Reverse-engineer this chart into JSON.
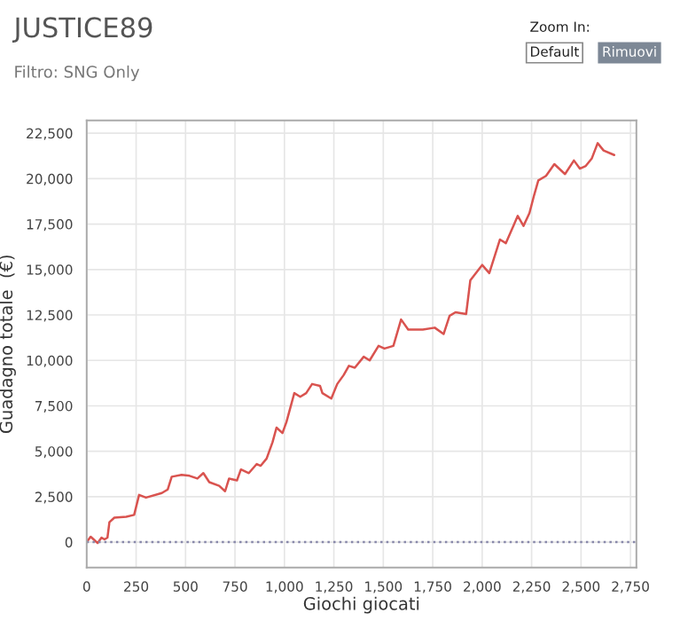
{
  "chart_data": {
    "type": "line",
    "title": "JUSTICE89",
    "subtitle": "Filtro: SNG Only",
    "xlabel": "Giochi giocati",
    "ylabel": "Guadagno totale  (€)",
    "annotations": [
      "Zoom In:",
      "Default",
      "Rimuovi"
    ],
    "series": [
      {
        "color": "#d9534f",
        "x": [
          0,
          20,
          35,
          55,
          75,
          90,
          105,
          115,
          140,
          200,
          240,
          265,
          300,
          380,
          410,
          430,
          480,
          520,
          560,
          590,
          620,
          670,
          700,
          720,
          760,
          780,
          820,
          860,
          880,
          910,
          940,
          960,
          990,
          1010,
          1050,
          1080,
          1110,
          1140,
          1180,
          1192,
          1237,
          1267,
          1300,
          1326,
          1356,
          1401,
          1431,
          1476,
          1506,
          1551,
          1590,
          1626,
          1700,
          1760,
          1805,
          1835,
          1865,
          1919,
          1940,
          2000,
          2036,
          2090,
          2120,
          2180,
          2209,
          2239,
          2263,
          2284,
          2323,
          2365,
          2419,
          2464,
          2494,
          2524,
          2554,
          2584,
          2614,
          2668
        ],
        "values": [
          0,
          300,
          150,
          -50,
          250,
          150,
          250,
          1100,
          1350,
          1400,
          1500,
          2600,
          2450,
          2700,
          2900,
          3600,
          3700,
          3650,
          3500,
          3800,
          3300,
          3100,
          2800,
          3500,
          3400,
          4000,
          3800,
          4300,
          4200,
          4600,
          5500,
          6300,
          6000,
          6600,
          8200,
          8000,
          8200,
          8700,
          8600,
          8200,
          7900,
          8700,
          9200,
          9700,
          9600,
          10200,
          10000,
          10800,
          10650,
          10800,
          12250,
          11700,
          11700,
          11800,
          11450,
          12450,
          12650,
          12550,
          14400,
          15250,
          14800,
          16650,
          16450,
          17950,
          17400,
          18100,
          19100,
          19900,
          20150,
          20800,
          20250,
          21000,
          20550,
          20700,
          21100,
          21950,
          21550,
          21300
        ]
      }
    ],
    "xlim": [
      0,
      2780
    ],
    "xticks": [
      {
        "value": 0,
        "label": "0"
      },
      {
        "value": 250,
        "label": "250"
      },
      {
        "value": 500,
        "label": "500"
      },
      {
        "value": 750,
        "label": "750"
      },
      {
        "value": 1000,
        "label": "1,000"
      },
      {
        "value": 1250,
        "label": "1,250"
      },
      {
        "value": 1500,
        "label": "1,500"
      },
      {
        "value": 1750,
        "label": "1,750"
      },
      {
        "value": 2000,
        "label": "2,000"
      },
      {
        "value": 2250,
        "label": "2,250"
      },
      {
        "value": 2500,
        "label": "2,500"
      },
      {
        "value": 2750,
        "label": "2,750"
      }
    ],
    "ylim": [
      -1400,
      23200
    ],
    "yticks": [
      {
        "value": 0,
        "label": "0"
      },
      {
        "value": 2500,
        "label": "2,500"
      },
      {
        "value": 5000,
        "label": "5,000"
      },
      {
        "value": 7500,
        "label": "7,500"
      },
      {
        "value": 10000,
        "label": "10,000"
      },
      {
        "value": 12500,
        "label": "12,500"
      },
      {
        "value": 15000,
        "label": "15,000"
      },
      {
        "value": 17500,
        "label": "17,500"
      },
      {
        "value": 20000,
        "label": "20,000"
      },
      {
        "value": 22500,
        "label": "22,500"
      }
    ],
    "ref_lines": [
      {
        "axis": "y",
        "value": 0,
        "color": "#8888aa",
        "line_style": "dotted"
      }
    ],
    "grid": true,
    "line_style": "solid"
  }
}
